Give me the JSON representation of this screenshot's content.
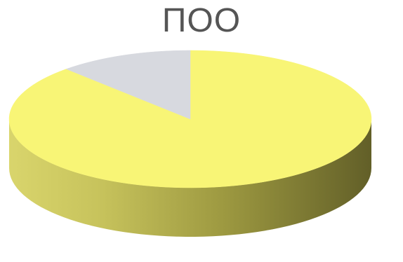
{
  "chart_data": {
    "type": "pie",
    "title": "ПОО",
    "categories": [
      "",
      ""
    ],
    "values": [
      88,
      12
    ],
    "colors": [
      "#f8f576",
      "#d7d9df"
    ],
    "side_colors": [
      "#bbb750",
      "#aeb0b8"
    ],
    "legend": "none",
    "style": "3d"
  }
}
